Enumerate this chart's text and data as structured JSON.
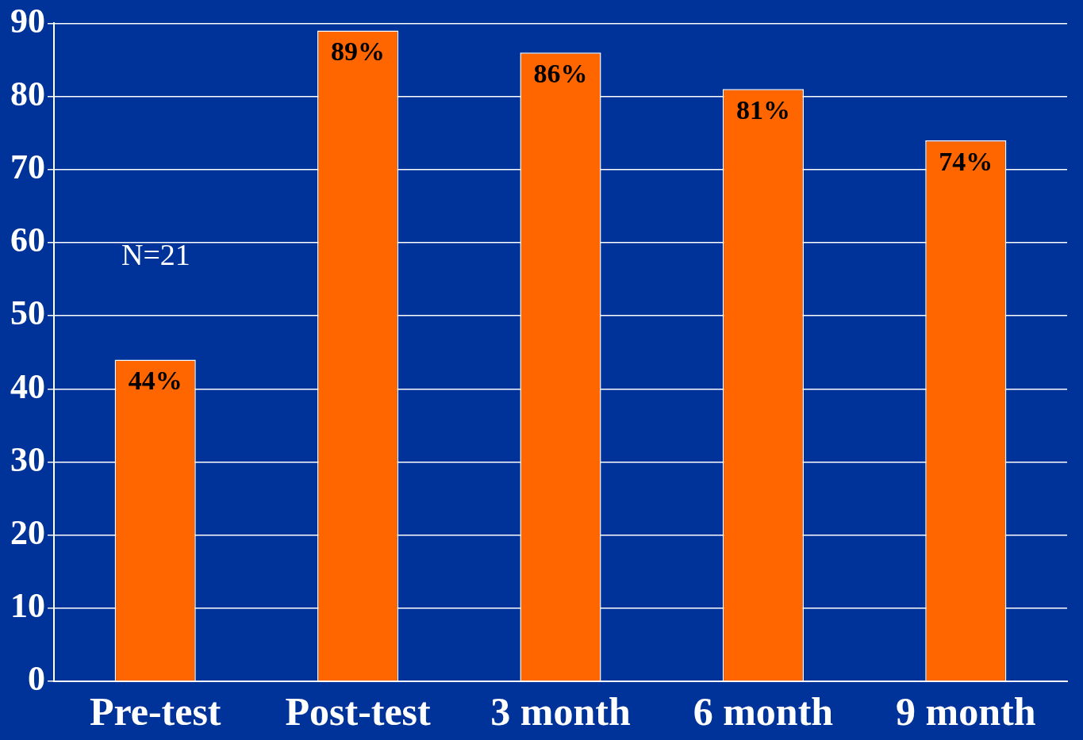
{
  "chart_data": {
    "type": "bar",
    "categories": [
      "Pre-test",
      "Post-test",
      "3 month",
      "6 month",
      "9 month"
    ],
    "values": [
      44,
      89,
      86,
      81,
      74
    ],
    "color": "#ff6600",
    "value_labels": [
      "44%",
      "89%",
      "86%",
      "81%",
      "74%"
    ],
    "ylim": [
      0,
      90
    ],
    "yticks": [
      0,
      10,
      20,
      30,
      40,
      50,
      60,
      70,
      80,
      90
    ],
    "grid": "y",
    "annotations": [
      "N=21"
    ]
  }
}
